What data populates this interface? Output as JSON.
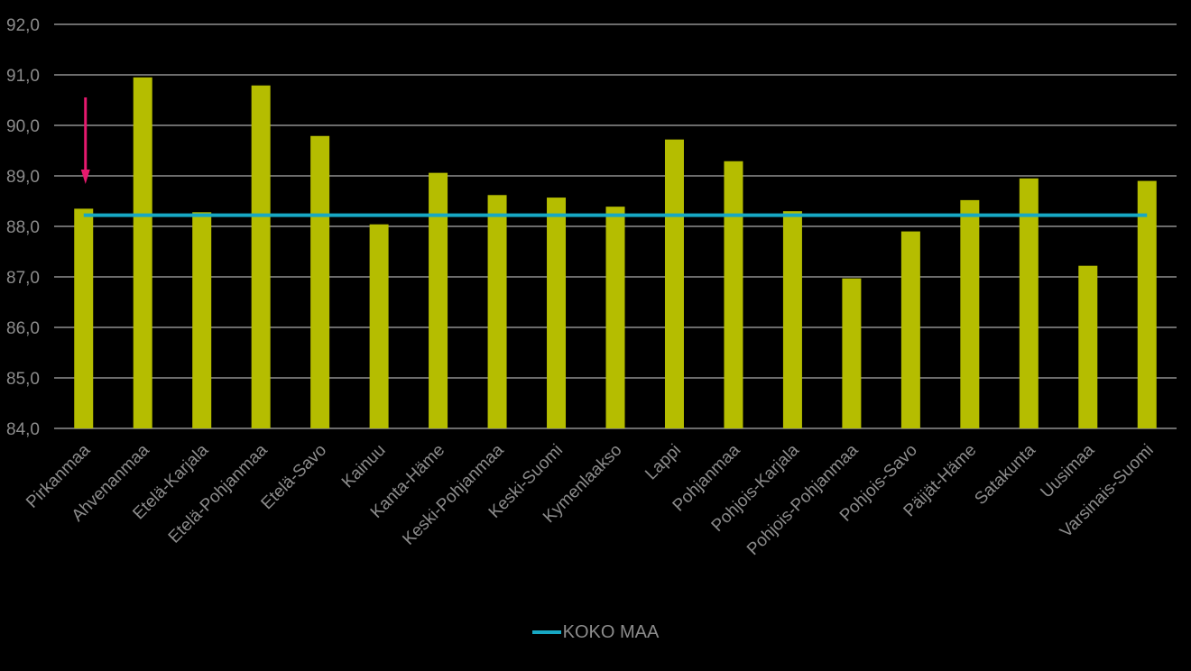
{
  "chart_data": {
    "type": "bar",
    "title": "",
    "xlabel": "",
    "ylabel": "",
    "ylim": [
      84.0,
      92.0
    ],
    "yticks": [
      "84,0",
      "85,0",
      "86,0",
      "87,0",
      "88,0",
      "89,0",
      "90,0",
      "91,0",
      "92,0"
    ],
    "categories": [
      "Pirkanmaa",
      "Ahvenanmaa",
      "Etelä-Karjala",
      "Etelä-Pohjanmaa",
      "Etelä-Savo",
      "Kainuu",
      "Kanta-Häme",
      "Keski-Pohjanmaa",
      "Keski-Suomi",
      "Kymenlaakso",
      "Lappi",
      "Pohjanmaa",
      "Pohjois-Karjala",
      "Pohjois-Pohjanmaa",
      "Pohjois-Savo",
      "Päijät-Häme",
      "Satakunta",
      "Uusimaa",
      "Varsinais-Suomi"
    ],
    "series": [
      {
        "type": "bar",
        "color": "#b5bd00",
        "values": [
          88.35,
          90.95,
          88.28,
          90.79,
          89.79,
          88.04,
          89.06,
          88.62,
          88.57,
          88.39,
          89.72,
          89.29,
          88.3,
          86.97,
          87.9,
          88.52,
          88.95,
          87.22,
          88.9
        ]
      },
      {
        "name": "KOKO MAA",
        "type": "line",
        "color": "#17a8c4",
        "value": 88.22
      }
    ],
    "annotation": {
      "type": "arrow",
      "category": "Pirkanmaa",
      "color": "#e6196e",
      "direction": "down"
    },
    "grid": true,
    "legend_position": "bottom"
  }
}
